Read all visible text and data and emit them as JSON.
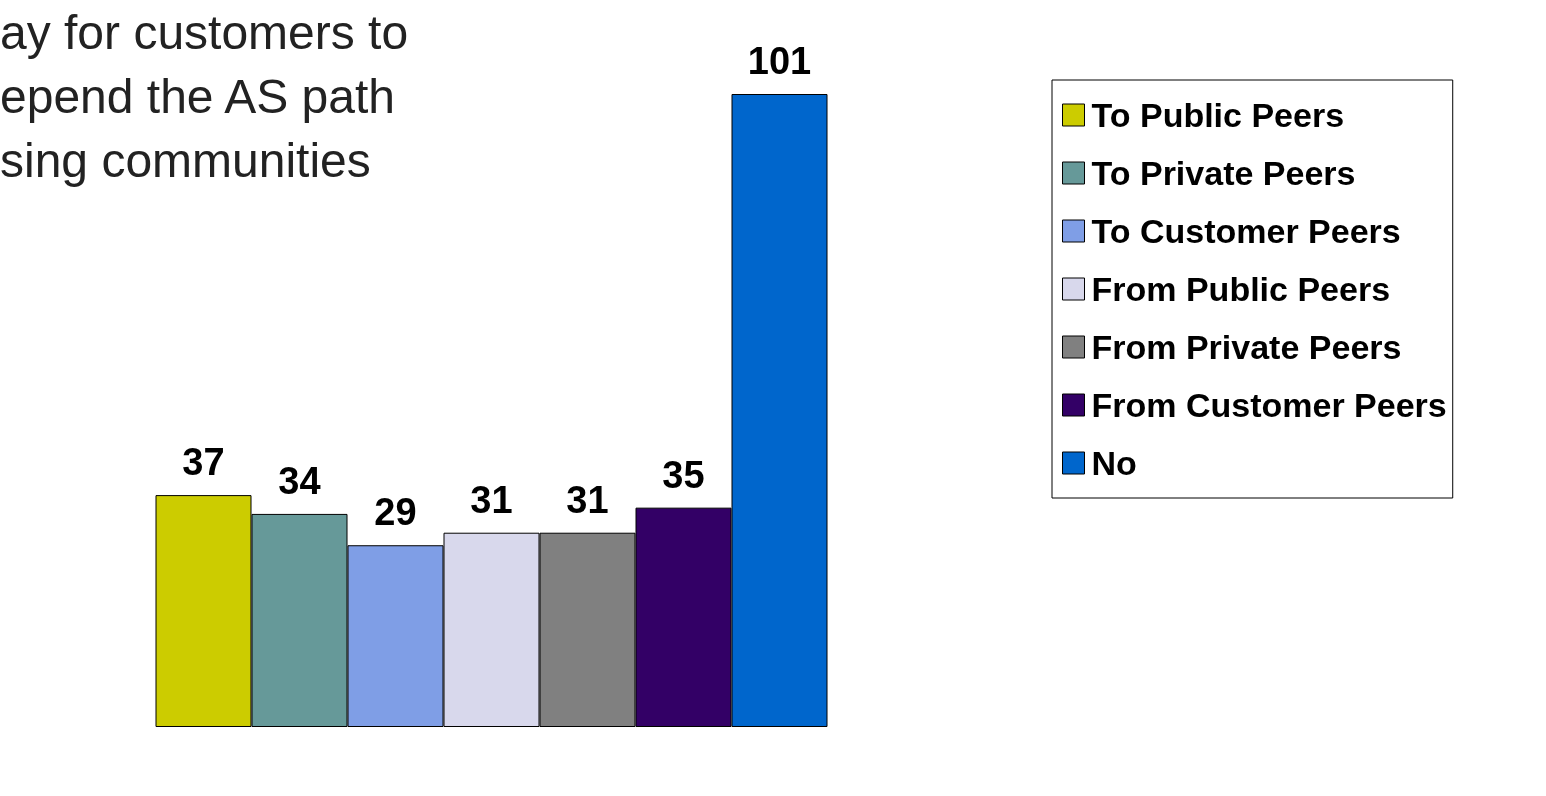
{
  "chart_data": {
    "type": "bar",
    "title": "ay for customers to\nepend the AS path\nsing communities",
    "categories": [
      null
    ],
    "data_labels": true,
    "legend": "right",
    "series": [
      {
        "name": "To Public Peers",
        "color": "#cccc00",
        "values": [
          37
        ]
      },
      {
        "name": "To Private Peers",
        "color": "#669999",
        "values": [
          34
        ]
      },
      {
        "name": "To Customer Peers",
        "color": "#7f9ee6",
        "values": [
          29
        ]
      },
      {
        "name": "From Public Peers",
        "color": "#d8d8ec",
        "values": [
          31
        ]
      },
      {
        "name": "From Private Peers",
        "color": "#808080",
        "values": [
          31
        ]
      },
      {
        "name": "From Customer Peers",
        "color": "#330066",
        "values": [
          35
        ]
      },
      {
        "name": "No",
        "color": "#0066cc",
        "values": [
          101
        ]
      }
    ]
  }
}
